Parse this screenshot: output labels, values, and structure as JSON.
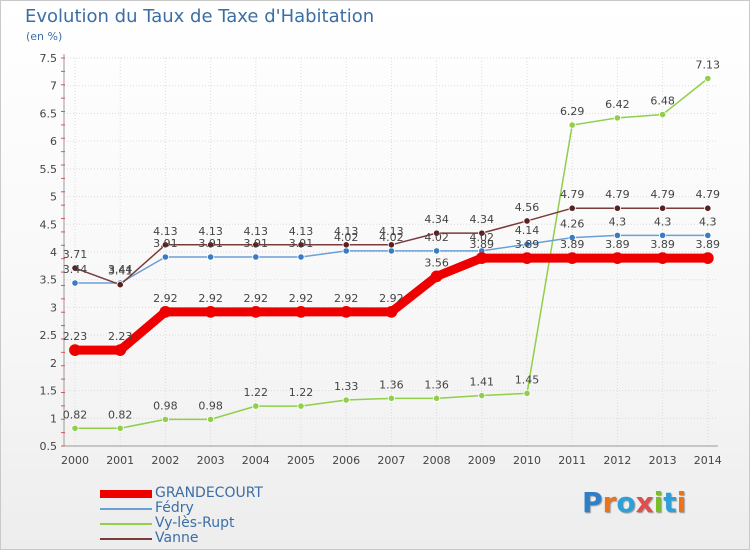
{
  "title": "Evolution du Taux de Taxe d'Habitation",
  "subtitle": "(en %)",
  "logo": {
    "text": "Proxiti",
    "letters": [
      {
        "ch": "P",
        "color": "#2f7fc8"
      },
      {
        "ch": "r",
        "color": "#e8741b"
      },
      {
        "ch": "o",
        "color": "#2f9fd8"
      },
      {
        "ch": "x",
        "color": "#e14d4d"
      },
      {
        "ch": "i",
        "color": "#7bbd2a"
      },
      {
        "ch": "t",
        "color": "#2f9fd8"
      },
      {
        "ch": "i",
        "color": "#e8741b"
      }
    ]
  },
  "chart_data": {
    "type": "line",
    "title": "Evolution du Taux de Taxe d'Habitation",
    "ylabel": "(en %)",
    "xlabel": "",
    "x": [
      "2000",
      "2001",
      "2002",
      "2003",
      "2004",
      "2005",
      "2006",
      "2007",
      "2008",
      "2009",
      "2010",
      "2011",
      "2012",
      "2013",
      "2014"
    ],
    "ylim": [
      0.5,
      7.5
    ],
    "yticks": [
      "0.5",
      "1",
      "1.5",
      "2",
      "2.5",
      "3",
      "3.5",
      "4",
      "4.5",
      "5",
      "5.5",
      "6",
      "6.5",
      "7",
      "7.5"
    ],
    "grid": true,
    "legend_position": "bottom-left",
    "series": [
      {
        "name": "Vy-lès-Rupt",
        "color": "#8fcf4a",
        "marker": "#8fcf4a",
        "width": 1.5,
        "values": [
          0.82,
          0.82,
          0.98,
          0.98,
          1.22,
          1.22,
          1.33,
          1.36,
          1.36,
          1.41,
          1.45,
          6.29,
          6.42,
          6.48,
          7.13
        ],
        "labels": [
          "0.82",
          "0.82",
          "0.98",
          "0.98",
          "1.22",
          "1.22",
          "1.33",
          "1.36",
          "1.36",
          "1.41",
          "1.45",
          "6.29",
          "6.42",
          "6.48",
          "7.13"
        ]
      },
      {
        "name": "Fédry",
        "color": "#6aa0d6",
        "marker": "#3a7cc4",
        "width": 1.5,
        "values": [
          3.44,
          3.44,
          3.91,
          3.91,
          3.91,
          3.91,
          4.02,
          4.02,
          4.02,
          4.02,
          4.14,
          4.26,
          4.3,
          4.3,
          4.3
        ],
        "labels": [
          "3.44",
          "3.44",
          "3.91",
          "3.91",
          "3.91",
          "3.91",
          "4.02",
          "4.02",
          "4.02",
          "4.02",
          "4.14",
          "4.26",
          "4.3",
          "4.3",
          "4.3"
        ]
      },
      {
        "name": "Vanne",
        "color": "#7a3b3b",
        "marker": "#5a2020",
        "width": 1.5,
        "values": [
          3.71,
          3.41,
          4.13,
          4.13,
          4.13,
          4.13,
          4.13,
          4.13,
          4.34,
          4.34,
          4.56,
          4.79,
          4.79,
          4.79,
          4.79
        ],
        "labels": [
          "3.71",
          "3.41",
          "4.13",
          "4.13",
          "4.13",
          "4.13",
          "4.13",
          "4.13",
          "4.34",
          "4.34",
          "4.56",
          "4.79",
          "4.79",
          "4.79",
          "4.79"
        ]
      },
      {
        "name": "GRANDECOURT",
        "color": "#ee0000",
        "marker": "#ee0000",
        "width": 9,
        "values": [
          2.23,
          2.23,
          2.92,
          2.92,
          2.92,
          2.92,
          2.92,
          2.92,
          3.56,
          3.89,
          3.89,
          3.89,
          3.89,
          3.89,
          3.89
        ],
        "labels": [
          "2.23",
          "2.23",
          "2.92",
          "2.92",
          "2.92",
          "2.92",
          "2.92",
          "2.92",
          "3.56",
          "3.89",
          "3.89",
          "3.89",
          "3.89",
          "3.89",
          "3.89"
        ]
      }
    ],
    "legend": [
      {
        "name": "GRANDECOURT",
        "color": "#ee0000",
        "thickness": 8
      },
      {
        "name": "Fédry",
        "color": "#6aa0d6",
        "thickness": 2
      },
      {
        "name": "Vy-lès-Rupt",
        "color": "#8fcf4a",
        "thickness": 2
      },
      {
        "name": "Vanne",
        "color": "#7a3b3b",
        "thickness": 2
      }
    ]
  }
}
